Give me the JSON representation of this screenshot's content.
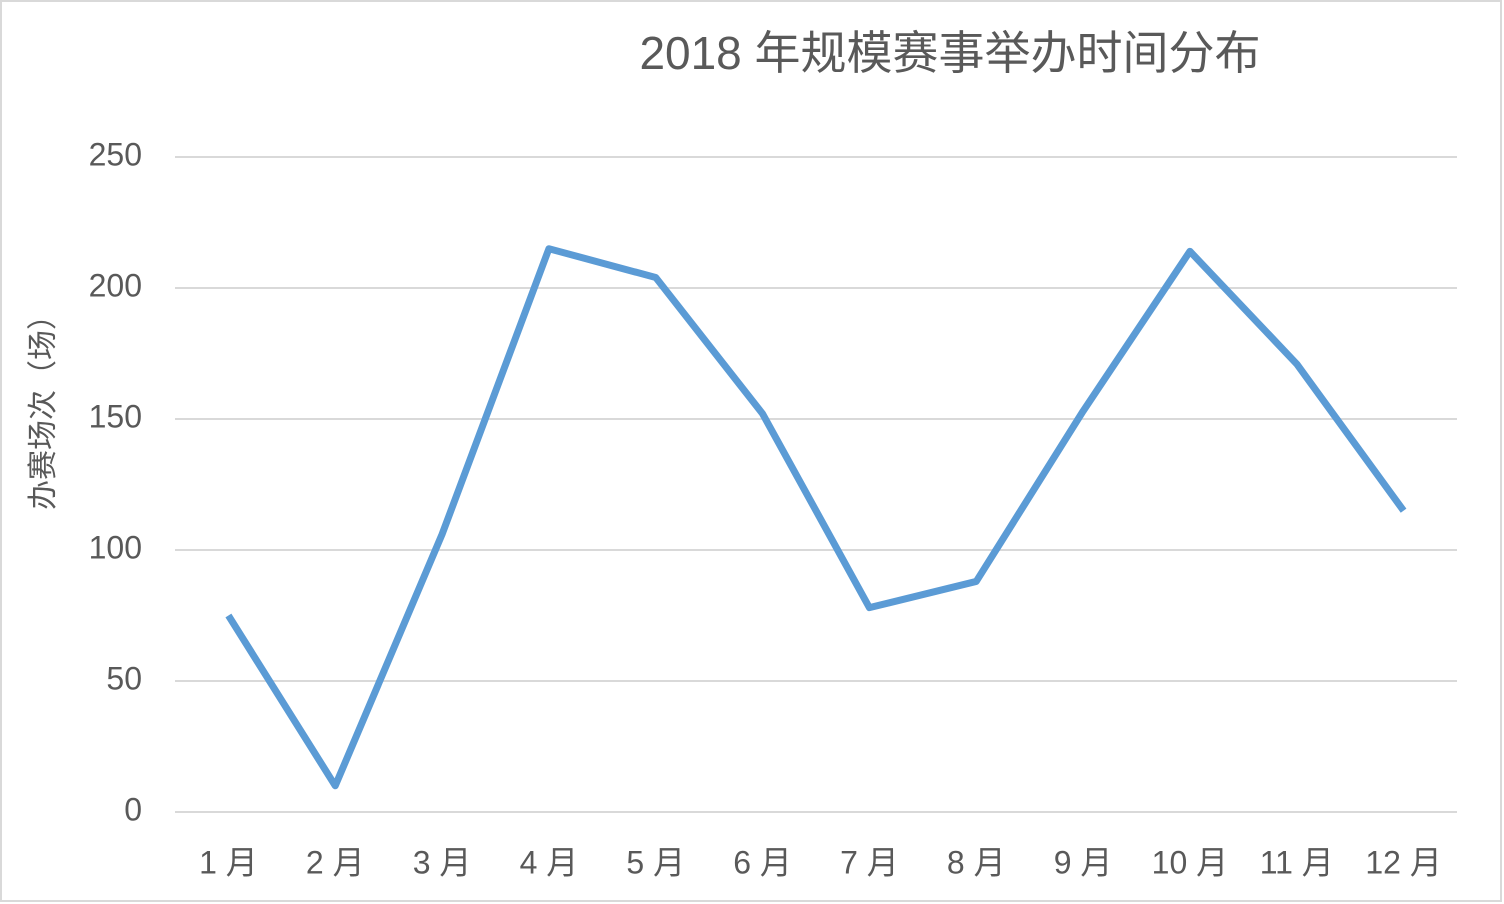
{
  "chart_data": {
    "type": "line",
    "title": "2018 年规模赛事举办时间分布",
    "y_label": "办赛场次（场）",
    "categories": [
      "1 月",
      "2 月",
      "3 月",
      "4 月",
      "5 月",
      "6 月",
      "7 月",
      "8 月",
      "9 月",
      "10 月",
      "11 月",
      "12 月"
    ],
    "series": [
      {
        "name": "办赛场次",
        "color": "#5b9bd5",
        "values": [
          75,
          10,
          106,
          215,
          204,
          152,
          78,
          88,
          153,
          214,
          171,
          115
        ]
      }
    ],
    "ylim": [
      0,
      250
    ],
    "yticks": [
      0,
      50,
      100,
      150,
      200,
      250
    ],
    "grid": true
  }
}
